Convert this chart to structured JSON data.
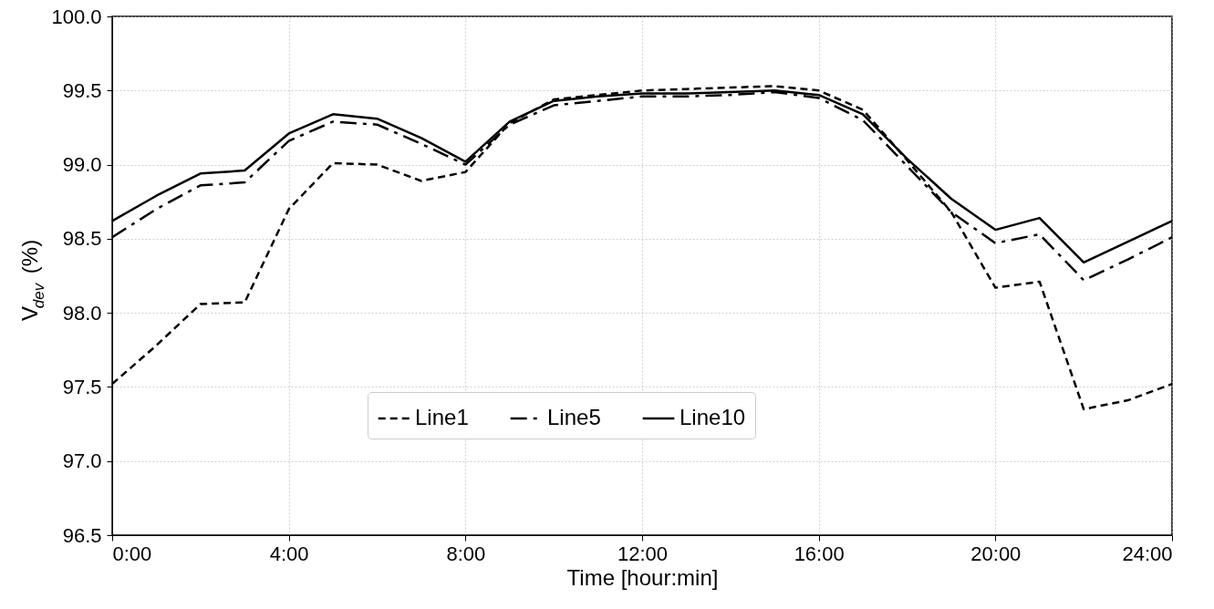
{
  "chart_data": {
    "type": "line",
    "xlabel": "Time [hour:min]",
    "ylabel": "V$_{dev}$ (%)",
    "x": [
      0,
      1,
      2,
      3,
      4,
      5,
      6,
      7,
      8,
      9,
      10,
      11,
      12,
      13,
      14,
      15,
      16,
      17,
      18,
      19,
      20,
      21,
      22,
      23,
      24
    ],
    "series": [
      {
        "name": "Line1",
        "color": "#000000",
        "line_style": "dashed",
        "values": [
          97.52,
          97.78,
          98.06,
          98.07,
          98.7,
          99.01,
          99.0,
          98.89,
          98.95,
          99.28,
          99.44,
          99.47,
          99.5,
          99.51,
          99.52,
          99.53,
          99.5,
          99.37,
          99.03,
          98.68,
          98.17,
          98.21,
          97.35,
          97.41,
          97.52
        ]
      },
      {
        "name": "Line5",
        "color": "#000000",
        "line_style": "dashdot",
        "values": [
          98.51,
          98.7,
          98.86,
          98.88,
          99.16,
          99.29,
          99.27,
          99.14,
          99.0,
          99.27,
          99.4,
          99.43,
          99.46,
          99.46,
          99.47,
          99.49,
          99.45,
          99.3,
          98.99,
          98.68,
          98.47,
          98.53,
          98.22,
          98.36,
          98.51
        ]
      },
      {
        "name": "Line10",
        "color": "#000000",
        "line_style": "solid",
        "values": [
          98.62,
          98.79,
          98.94,
          98.96,
          99.21,
          99.34,
          99.31,
          99.18,
          99.02,
          99.29,
          99.43,
          99.46,
          99.48,
          99.48,
          99.49,
          99.5,
          99.47,
          99.34,
          99.04,
          98.77,
          98.56,
          98.64,
          98.34,
          98.48,
          98.62
        ]
      }
    ],
    "xlim": [
      0,
      24
    ],
    "xticks": [
      {
        "value": 0,
        "label": "0:00"
      },
      {
        "value": 4,
        "label": "4:00"
      },
      {
        "value": 8,
        "label": "8:00"
      },
      {
        "value": 12,
        "label": "12:00"
      },
      {
        "value": 16,
        "label": "16:00"
      },
      {
        "value": 20,
        "label": "20:00"
      },
      {
        "value": 24,
        "label": "24:00"
      }
    ],
    "ylim": [
      96.5,
      100
    ],
    "yticks": [
      {
        "value": 96.5,
        "label": "96.5"
      },
      {
        "value": 97,
        "label": "97.0"
      },
      {
        "value": 97.5,
        "label": "97.5"
      },
      {
        "value": 98,
        "label": "98.0"
      },
      {
        "value": 98.5,
        "label": "98.5"
      },
      {
        "value": 99,
        "label": "99.0"
      },
      {
        "value": 99.5,
        "label": "99.5"
      },
      {
        "value": 100,
        "label": "100.0"
      }
    ],
    "grid": true,
    "legend": "bottom",
    "marker": "none"
  }
}
